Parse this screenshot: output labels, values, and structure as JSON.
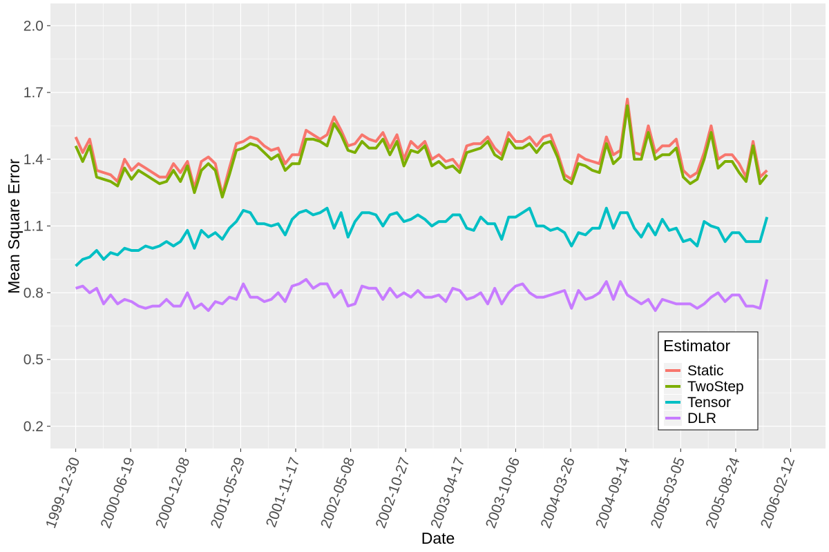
{
  "chart_data": {
    "type": "line",
    "xlabel": "Date",
    "ylabel": "Mean Square Error",
    "ylim": [
      0.1,
      2.1
    ],
    "yticks": [
      "0.2",
      "0.5",
      "0.8",
      "1.1",
      "1.4",
      "1.7",
      "2.0"
    ],
    "xlim_days": [
      -79,
      2345
    ],
    "xticks": [
      "1999-12-30",
      "2000-06-19",
      "2000-12-08",
      "2001-05-29",
      "2001-11-17",
      "2002-05-08",
      "2002-10-27",
      "2003-04-17",
      "2003-10-06",
      "2004-03-26",
      "2004-09-14",
      "2005-03-05",
      "2005-08-24",
      "2006-02-12"
    ],
    "x_start": "1999-12-30",
    "x_end": "2005-11-30",
    "grid": true,
    "legend": {
      "title": "Estimator",
      "position": "bottom-right"
    },
    "series": [
      {
        "name": "Static",
        "color": "#F8766D",
        "values": [
          1.5,
          1.43,
          1.49,
          1.35,
          1.34,
          1.33,
          1.3,
          1.4,
          1.35,
          1.38,
          1.36,
          1.34,
          1.32,
          1.32,
          1.38,
          1.34,
          1.39,
          1.27,
          1.39,
          1.41,
          1.38,
          1.24,
          1.36,
          1.47,
          1.48,
          1.5,
          1.49,
          1.46,
          1.44,
          1.45,
          1.38,
          1.42,
          1.42,
          1.53,
          1.51,
          1.49,
          1.51,
          1.59,
          1.53,
          1.46,
          1.47,
          1.51,
          1.49,
          1.48,
          1.52,
          1.45,
          1.51,
          1.4,
          1.48,
          1.45,
          1.48,
          1.4,
          1.42,
          1.39,
          1.4,
          1.36,
          1.46,
          1.47,
          1.47,
          1.5,
          1.45,
          1.42,
          1.52,
          1.48,
          1.48,
          1.5,
          1.46,
          1.5,
          1.51,
          1.43,
          1.33,
          1.31,
          1.42,
          1.4,
          1.39,
          1.38,
          1.5,
          1.42,
          1.44,
          1.67,
          1.43,
          1.42,
          1.55,
          1.43,
          1.46,
          1.46,
          1.49,
          1.35,
          1.32,
          1.34,
          1.43,
          1.55,
          1.4,
          1.42,
          1.42,
          1.38,
          1.32,
          1.48,
          1.32,
          1.35
        ]
      },
      {
        "name": "TwoStep",
        "color": "#7CAE00",
        "values": [
          1.46,
          1.39,
          1.46,
          1.32,
          1.31,
          1.3,
          1.28,
          1.36,
          1.31,
          1.35,
          1.33,
          1.31,
          1.29,
          1.3,
          1.35,
          1.3,
          1.37,
          1.25,
          1.35,
          1.38,
          1.35,
          1.23,
          1.33,
          1.44,
          1.45,
          1.47,
          1.46,
          1.43,
          1.4,
          1.42,
          1.35,
          1.38,
          1.38,
          1.49,
          1.49,
          1.48,
          1.46,
          1.56,
          1.51,
          1.44,
          1.43,
          1.48,
          1.45,
          1.45,
          1.49,
          1.42,
          1.48,
          1.37,
          1.44,
          1.43,
          1.46,
          1.37,
          1.39,
          1.36,
          1.37,
          1.34,
          1.43,
          1.44,
          1.45,
          1.48,
          1.42,
          1.4,
          1.49,
          1.45,
          1.45,
          1.47,
          1.43,
          1.47,
          1.48,
          1.41,
          1.31,
          1.29,
          1.38,
          1.37,
          1.35,
          1.34,
          1.47,
          1.38,
          1.41,
          1.64,
          1.4,
          1.4,
          1.52,
          1.4,
          1.42,
          1.42,
          1.45,
          1.32,
          1.29,
          1.31,
          1.4,
          1.52,
          1.36,
          1.39,
          1.39,
          1.34,
          1.3,
          1.46,
          1.29,
          1.33
        ]
      },
      {
        "name": "Tensor",
        "color": "#00BFC4",
        "values": [
          0.92,
          0.95,
          0.96,
          0.99,
          0.95,
          0.98,
          0.97,
          1.0,
          0.99,
          0.99,
          1.01,
          1.0,
          1.01,
          1.03,
          1.01,
          1.03,
          1.08,
          1.0,
          1.08,
          1.05,
          1.07,
          1.04,
          1.09,
          1.12,
          1.17,
          1.16,
          1.11,
          1.11,
          1.1,
          1.11,
          1.06,
          1.13,
          1.16,
          1.17,
          1.15,
          1.16,
          1.18,
          1.09,
          1.16,
          1.05,
          1.12,
          1.16,
          1.16,
          1.15,
          1.1,
          1.15,
          1.16,
          1.12,
          1.13,
          1.15,
          1.13,
          1.1,
          1.12,
          1.12,
          1.15,
          1.15,
          1.09,
          1.08,
          1.14,
          1.11,
          1.11,
          1.04,
          1.14,
          1.14,
          1.16,
          1.18,
          1.1,
          1.1,
          1.08,
          1.09,
          1.07,
          1.01,
          1.07,
          1.06,
          1.09,
          1.09,
          1.18,
          1.09,
          1.16,
          1.16,
          1.09,
          1.05,
          1.11,
          1.06,
          1.13,
          1.08,
          1.09,
          1.03,
          1.04,
          1.01,
          1.12,
          1.1,
          1.09,
          1.03,
          1.07,
          1.07,
          1.03,
          1.03,
          1.03,
          1.14
        ]
      },
      {
        "name": "DLR",
        "color": "#C77CFF",
        "values": [
          0.82,
          0.83,
          0.8,
          0.82,
          0.75,
          0.79,
          0.75,
          0.77,
          0.76,
          0.74,
          0.73,
          0.74,
          0.74,
          0.77,
          0.74,
          0.74,
          0.8,
          0.73,
          0.75,
          0.72,
          0.76,
          0.75,
          0.78,
          0.77,
          0.84,
          0.78,
          0.78,
          0.76,
          0.77,
          0.8,
          0.76,
          0.83,
          0.84,
          0.86,
          0.82,
          0.84,
          0.84,
          0.78,
          0.81,
          0.74,
          0.75,
          0.83,
          0.82,
          0.82,
          0.77,
          0.82,
          0.78,
          0.8,
          0.78,
          0.81,
          0.78,
          0.78,
          0.79,
          0.76,
          0.82,
          0.81,
          0.77,
          0.78,
          0.8,
          0.75,
          0.82,
          0.75,
          0.8,
          0.83,
          0.84,
          0.8,
          0.78,
          0.78,
          0.79,
          0.8,
          0.81,
          0.73,
          0.81,
          0.77,
          0.78,
          0.8,
          0.85,
          0.77,
          0.85,
          0.79,
          0.77,
          0.75,
          0.77,
          0.72,
          0.77,
          0.76,
          0.75,
          0.75,
          0.75,
          0.73,
          0.75,
          0.78,
          0.8,
          0.76,
          0.79,
          0.79,
          0.74,
          0.74,
          0.73,
          0.86
        ]
      }
    ]
  }
}
